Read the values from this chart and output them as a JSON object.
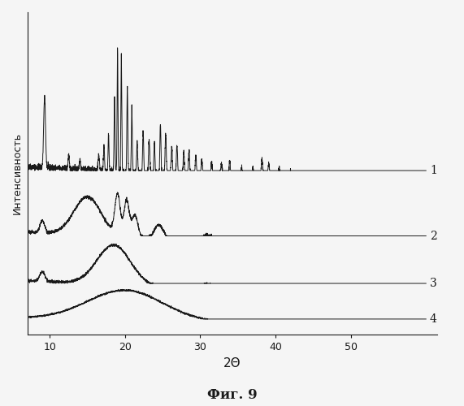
{
  "xlabel": "2Θ",
  "ylabel": "Интенсивность",
  "title": "Фиг. 9",
  "xmin": 7,
  "xmax": 60,
  "xticks": [
    10,
    20,
    30,
    40,
    50
  ],
  "curve_labels": [
    "1",
    "2",
    "3",
    "4"
  ],
  "background_color": "#f5f5f5",
  "line_color": "#1a1a1a",
  "offsets": [
    0.75,
    0.42,
    0.18,
    0.0
  ],
  "noise_level": 0.02
}
